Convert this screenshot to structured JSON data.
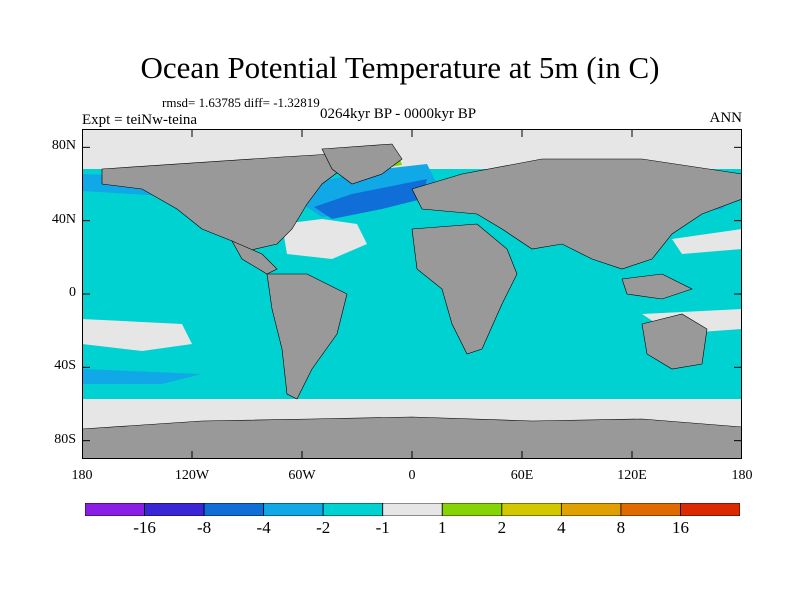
{
  "title": "Ocean Potential Temperature at 5m (in C)",
  "stats": "rmsd= 1.63785 diff= -1.32819",
  "experiment": "Expt = teiNw-teina",
  "period": "0264kyr BP - 0000kyr BP",
  "season": "ANN",
  "map": {
    "lat_labels": [
      "80N",
      "40N",
      "0",
      "40S",
      "80S"
    ],
    "lat_values": [
      80,
      40,
      0,
      -40,
      -80
    ],
    "lon_labels": [
      "180",
      "120W",
      "60W",
      "0",
      "60E",
      "120E",
      "180"
    ],
    "lon_values": [
      -180,
      -120,
      -60,
      0,
      60,
      120,
      180
    ],
    "lat_range": [
      -90,
      90
    ],
    "lon_range": [
      -180,
      180
    ],
    "colors": {
      "land": "#999999",
      "ocean_main": "#00d2d2",
      "band_minus2_minus4": "#10a8e6",
      "band_minus4_minus8": "#0f6ed8",
      "band_minus1_1": "#e6e6e6",
      "band_1_2": "#86d404"
    }
  },
  "colorbar": {
    "tick_labels": [
      "-16",
      "-8",
      "-4",
      "-2",
      "-1",
      "1",
      "2",
      "4",
      "8",
      "16"
    ],
    "colors": [
      "#8a1ee6",
      "#3a26d6",
      "#0f6ed8",
      "#10a8e6",
      "#00d2d2",
      "#e6e6e6",
      "#86d404",
      "#d2c800",
      "#e0a000",
      "#e06a00",
      "#dc2a00"
    ]
  }
}
